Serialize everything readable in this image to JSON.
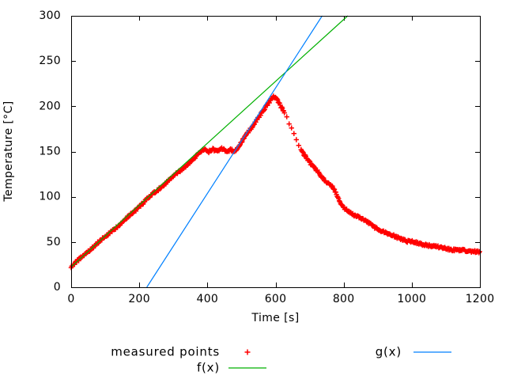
{
  "chart_data": {
    "type": "scatter",
    "title": "",
    "xlabel": "Time [s]",
    "ylabel": "Temperature [°C]",
    "xlim": [
      0,
      1200
    ],
    "ylim": [
      0,
      300
    ],
    "xticks": [
      0,
      200,
      400,
      600,
      800,
      1000,
      1200
    ],
    "yticks": [
      0,
      50,
      100,
      150,
      200,
      250,
      300
    ],
    "grid": false,
    "legend_position": "below-chart",
    "series": [
      {
        "name": "measured points",
        "type": "points",
        "marker": "plus",
        "color": "#ff0000",
        "sample_interval_s": 2,
        "sparse_ranges": [
          {
            "from": 626,
            "to": 674,
            "interval": 7
          }
        ],
        "noise_amplitude_c": 1.25,
        "keypoints": [
          [
            0,
            22.5
          ],
          [
            390,
            152.5
          ],
          [
            402,
            149.5
          ],
          [
            415,
            152.5
          ],
          [
            429,
            149.5
          ],
          [
            443,
            152.5
          ],
          [
            457,
            149.5
          ],
          [
            469,
            152
          ],
          [
            480,
            150
          ],
          [
            510,
            166
          ],
          [
            540,
            183
          ],
          [
            570,
            199
          ],
          [
            585,
            206
          ],
          [
            595,
            211
          ],
          [
            610,
            204
          ],
          [
            625,
            193
          ],
          [
            638,
            183
          ],
          [
            652,
            170
          ],
          [
            665,
            158
          ],
          [
            678,
            150
          ],
          [
            692,
            143
          ],
          [
            705,
            136
          ],
          [
            724,
            128
          ],
          [
            743,
            119
          ],
          [
            766,
            112
          ],
          [
            778,
            105
          ],
          [
            786,
            96
          ],
          [
            798,
            88
          ],
          [
            818,
            82
          ],
          [
            847,
            77
          ],
          [
            894,
            66
          ],
          [
            940,
            58
          ],
          [
            986,
            51
          ],
          [
            1033,
            47
          ],
          [
            1079,
            44.5
          ],
          [
            1126,
            42
          ],
          [
            1179,
            39.5
          ],
          [
            1200,
            39
          ]
        ]
      },
      {
        "name": "f(x)",
        "type": "line",
        "color": "#00b000",
        "points": [
          [
            0,
            22.5
          ],
          [
            812,
            300
          ]
        ]
      },
      {
        "name": "g(x)",
        "type": "line",
        "color": "#0080ff",
        "points": [
          [
            222,
            0
          ],
          [
            737,
            300
          ]
        ]
      }
    ],
    "legend": {
      "entries": [
        {
          "label": "measured points",
          "sample": "plus-marker",
          "color": "#ff0000",
          "row": 1,
          "col": 1
        },
        {
          "label": "f(x)",
          "sample": "line",
          "color": "#00b000",
          "row": 2,
          "col": 1
        },
        {
          "label": "g(x)",
          "sample": "line",
          "color": "#0080ff",
          "row": 1,
          "col": 2
        }
      ]
    }
  },
  "colors": {
    "axis": "#000000",
    "background": "#ffffff",
    "measured": "#ff0000",
    "f_line": "#00b000",
    "g_line": "#0080ff"
  }
}
